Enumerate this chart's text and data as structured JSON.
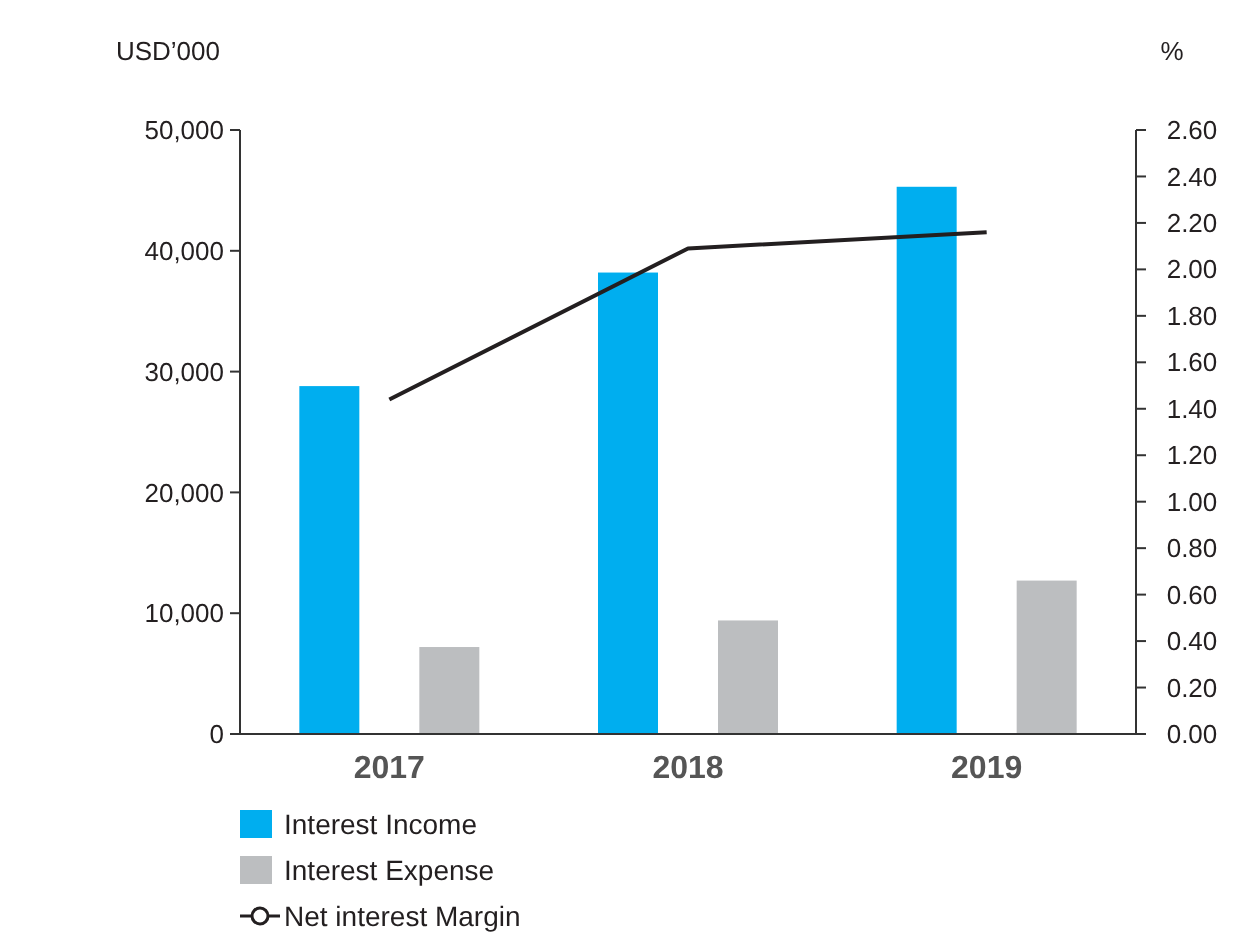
{
  "chart_data": {
    "type": "bar",
    "ylabel": "USD’000",
    "y2label": "%",
    "categories": [
      "2017",
      "2018",
      "2019"
    ],
    "series": [
      {
        "name": "Interest Income",
        "color": "#00aeef",
        "values": [
          28800,
          38200,
          45300
        ]
      },
      {
        "name": "Interest Expense",
        "color": "#bcbec0",
        "values": [
          7200,
          9400,
          12700
        ]
      },
      {
        "name": "Net interest Margin",
        "type": "line",
        "axis": "y2",
        "color": "#231f20",
        "values": [
          1.44,
          2.09,
          2.16
        ]
      }
    ],
    "ylim": [
      0,
      50000
    ],
    "yticks": [
      {
        "value": 0,
        "label": "0"
      },
      {
        "value": 10000,
        "label": "10,000"
      },
      {
        "value": 20000,
        "label": "20,000"
      },
      {
        "value": 30000,
        "label": "30,000"
      },
      {
        "value": 40000,
        "label": "40,000"
      },
      {
        "value": 50000,
        "label": "50,000"
      }
    ],
    "y2lim": [
      0,
      2.6
    ],
    "y2ticks": [
      {
        "value": 0,
        "label": "0.00"
      },
      {
        "value": 0.2,
        "label": "0.20"
      },
      {
        "value": 0.4,
        "label": "0.40"
      },
      {
        "value": 0.6,
        "label": "0.60"
      },
      {
        "value": 0.8,
        "label": "0.80"
      },
      {
        "value": 1,
        "label": "1.00"
      },
      {
        "value": 1.2,
        "label": "1.20"
      },
      {
        "value": 1.4,
        "label": "1.40"
      },
      {
        "value": 1.6,
        "label": "1.60"
      },
      {
        "value": 1.8,
        "label": "1.80"
      },
      {
        "value": 2,
        "label": "2.00"
      },
      {
        "value": 2.2,
        "label": "2.20"
      },
      {
        "value": 2.4,
        "label": "2.40"
      },
      {
        "value": 2.6,
        "label": "2.60"
      }
    ],
    "legend": "bottom",
    "marker": "none",
    "grid": false
  }
}
